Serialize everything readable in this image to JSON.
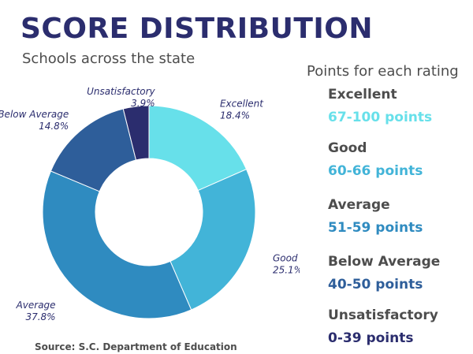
{
  "title": "SCORE DISTRIBUTION",
  "subtitle": "Schools across the state",
  "source": "Source: S.C. Department of Education",
  "legend": {
    "title": "Points for each rating",
    "items": [
      {
        "name": "Excellent",
        "points": "67-100 points",
        "color": "#67e0ea"
      },
      {
        "name": "Good",
        "points": "60-66 points",
        "color": "#42b4d8"
      },
      {
        "name": "Average",
        "points": "51-59 points",
        "color": "#2f8bc0"
      },
      {
        "name": "Below Average",
        "points": "40-50 points",
        "color": "#2e5e9a"
      },
      {
        "name": "Unsatisfactory",
        "points": "0-39 points",
        "color": "#2b2d6e"
      }
    ]
  },
  "chart_data": {
    "type": "pie",
    "donut": true,
    "categories": [
      "Excellent",
      "Good",
      "Average",
      "Below Average",
      "Unsatisfactory"
    ],
    "values": [
      18.4,
      25.1,
      37.8,
      14.8,
      3.9
    ],
    "labels": [
      "18.4%",
      "25.1%",
      "37.8%",
      "14.8%",
      "3.9%"
    ],
    "colors": [
      "#67e0ea",
      "#42b4d8",
      "#2f8bc0",
      "#2e5e9a",
      "#2b2d6e"
    ],
    "title": "SCORE DISTRIBUTION",
    "subtitle": "Schools across the state"
  }
}
